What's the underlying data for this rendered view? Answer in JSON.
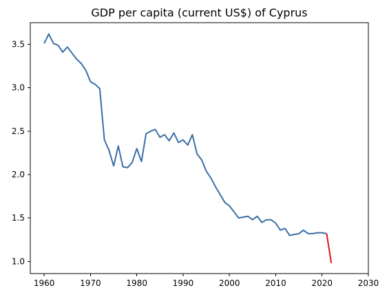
{
  "chart_data": {
    "type": "line",
    "title": "GDP per capita (current US$) of Cyprus",
    "xlabel": "",
    "ylabel": "",
    "xlim": [
      1957.0,
      2030.0
    ],
    "ylim": [
      0.86,
      3.75
    ],
    "x_ticks": [
      1960,
      1970,
      1980,
      1990,
      2000,
      2010,
      2020,
      2030
    ],
    "y_ticks": [
      1.0,
      1.5,
      2.0,
      2.5,
      3.0,
      3.5
    ],
    "x_tick_labels": [
      "1960",
      "1970",
      "1980",
      "1990",
      "2000",
      "2010",
      "2020",
      "2030"
    ],
    "y_tick_labels": [
      "1.0",
      "1.5",
      "2.0",
      "2.5",
      "3.0",
      "3.5"
    ],
    "grid": false,
    "series": [
      {
        "color": "#3a6ea5",
        "x": [
          1960,
          1961,
          1962,
          1963,
          1964,
          1965,
          1966,
          1967,
          1968,
          1969,
          1970,
          1971,
          1972,
          1973,
          1974,
          1975,
          1976,
          1977,
          1978,
          1979,
          1980,
          1981,
          1982,
          1983,
          1984,
          1985,
          1986,
          1987,
          1988,
          1989,
          1990,
          1991,
          1992,
          1993,
          1994,
          1995,
          1996,
          1997,
          1998,
          1999,
          2000,
          2001,
          2002,
          2003,
          2004,
          2005,
          2006,
          2007,
          2008,
          2009,
          2010,
          2011,
          2012,
          2013,
          2014,
          2015,
          2016,
          2017,
          2018,
          2019,
          2020,
          2021
        ],
        "y": [
          3.51,
          3.62,
          3.51,
          3.49,
          3.41,
          3.47,
          3.4,
          3.33,
          3.28,
          3.2,
          3.07,
          3.04,
          2.99,
          2.4,
          2.28,
          2.1,
          2.33,
          2.09,
          2.08,
          2.14,
          2.3,
          2.15,
          2.47,
          2.5,
          2.52,
          2.43,
          2.46,
          2.39,
          2.48,
          2.37,
          2.4,
          2.34,
          2.46,
          2.24,
          2.17,
          2.04,
          1.96,
          1.86,
          1.77,
          1.68,
          1.64,
          1.57,
          1.5,
          1.51,
          1.52,
          1.48,
          1.52,
          1.45,
          1.48,
          1.48,
          1.44,
          1.36,
          1.38,
          1.3,
          1.31,
          1.32,
          1.36,
          1.32,
          1.32,
          1.33,
          1.33,
          1.32
        ]
      },
      {
        "color": "#e8101a",
        "x": [
          2021,
          2022
        ],
        "y": [
          1.32,
          0.98
        ]
      }
    ]
  }
}
